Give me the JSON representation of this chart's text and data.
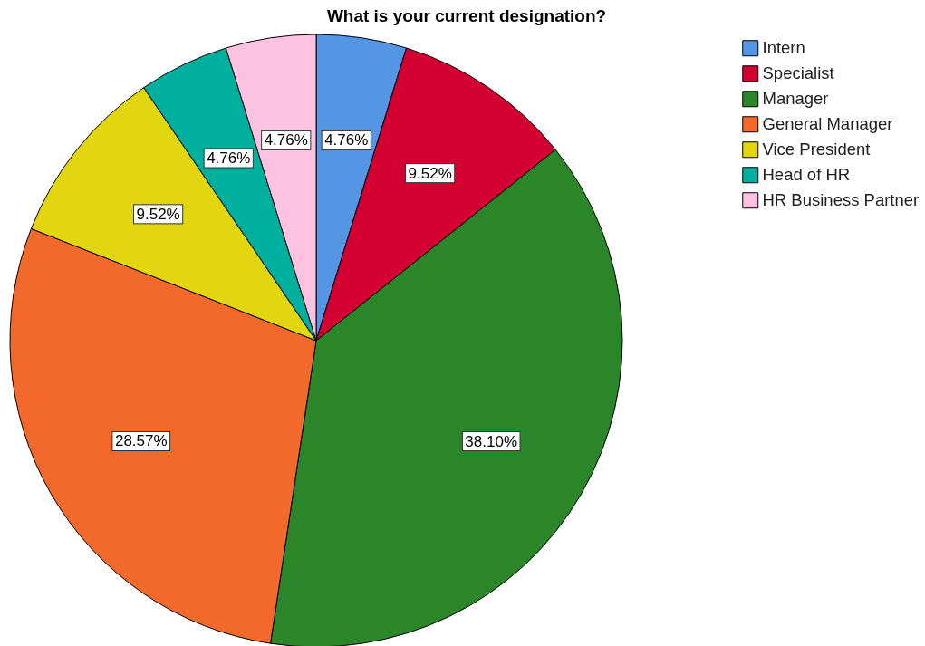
{
  "chart_data": {
    "type": "pie",
    "title": "What is your current designation?",
    "categories": [
      "Intern",
      "Specialist",
      "Manager",
      "General Manager",
      "Vice President",
      "Head of HR",
      "HR Business Partner"
    ],
    "values": [
      4.76,
      9.52,
      38.1,
      28.57,
      9.52,
      4.76,
      4.76
    ],
    "colors": [
      "#5596e4",
      "#d50032",
      "#2a8629",
      "#f2692b",
      "#e2d611",
      "#00b09e",
      "#fdc2e0"
    ],
    "value_labels": [
      "4.76%",
      "9.52%",
      "38.10%",
      "28.57%",
      "9.52%",
      "4.76%",
      "4.76%"
    ],
    "legend": "top right"
  }
}
